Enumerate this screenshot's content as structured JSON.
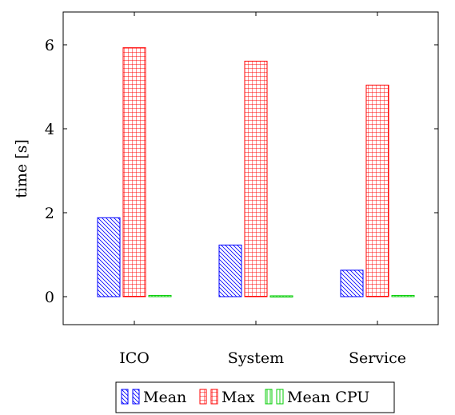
{
  "chart_data": {
    "type": "bar",
    "categories": [
      "ICO",
      "System",
      "Service"
    ],
    "series": [
      {
        "name": "Mean",
        "values": [
          1.88,
          1.23,
          0.63
        ],
        "color": "#0000ff",
        "pattern": "diagonal-lines"
      },
      {
        "name": "Max",
        "values": [
          5.93,
          5.61,
          5.04
        ],
        "color": "#ff0000",
        "pattern": "grid"
      },
      {
        "name": "Mean CPU",
        "values": [
          0.03,
          0.02,
          0.03
        ],
        "color": "#00cc00",
        "pattern": "vertical-lines"
      }
    ],
    "xlabel": "",
    "ylabel": "time [s]",
    "ylim": [
      -0.9,
      6.75
    ],
    "yticks": [
      0,
      2,
      4,
      6
    ],
    "legend_position": "bottom-center",
    "grid": false
  }
}
